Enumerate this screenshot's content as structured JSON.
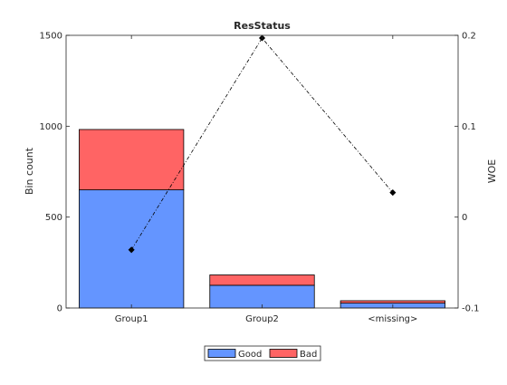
{
  "chart_data": {
    "type": "bar",
    "title": "ResStatus",
    "categories": [
      "Group1",
      "Group2",
      "<missing>"
    ],
    "series": [
      {
        "name": "Good",
        "values": [
          650,
          125,
          27
        ],
        "color": "#6495ff"
      },
      {
        "name": "Bad",
        "values": [
          332,
          57,
          13
        ],
        "color": "#ff6464"
      }
    ],
    "stacked": true,
    "ylabel": "Bin count",
    "ylim": [
      0,
      1500
    ],
    "yticks": [
      "0",
      "500",
      "1000",
      "1500"
    ],
    "ytick_values": [
      0,
      500,
      1000,
      1500
    ],
    "y2": {
      "label": "WOE",
      "ylim": [
        -0.1,
        0.2
      ],
      "yticks": [
        "-0.1",
        "0",
        "0.1",
        "0.2"
      ],
      "ytick_values": [
        -0.1,
        0,
        0.1,
        0.2
      ],
      "line_values": [
        -0.036,
        0.197,
        0.027
      ],
      "line_color": "#000000",
      "line_style": "dash-dot"
    },
    "legend": {
      "placement": "bottom-center",
      "entries": [
        "Good",
        "Bad"
      ]
    },
    "grid": false
  }
}
